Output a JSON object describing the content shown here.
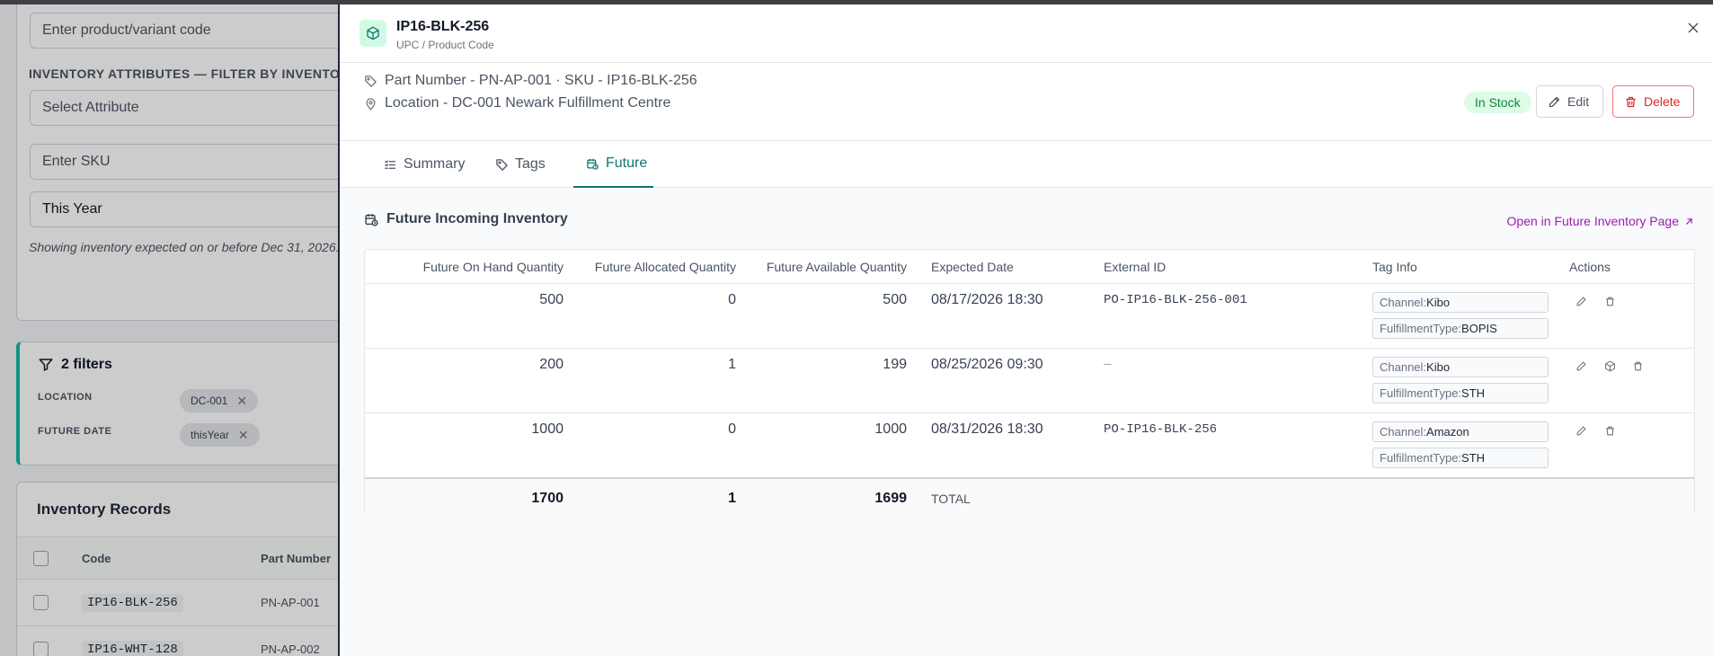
{
  "background": {
    "product_placeholder": "Enter product/variant code",
    "attributes_label": "INVENTORY ATTRIBUTES — FILTER BY INVENTORY",
    "attribute_placeholder": "Select Attribute",
    "sku_placeholder": "Enter SKU",
    "date_value": "This Year",
    "date_hint": "Showing inventory expected on or before Dec 31, 2026.",
    "filters_title": "2 filters",
    "filters": [
      {
        "label": "LOCATION",
        "value": "DC-001"
      },
      {
        "label": "FUTURE DATE",
        "value": "thisYear"
      }
    ],
    "records_title": "Inventory Records",
    "columns": [
      "Code",
      "Part Number"
    ],
    "rows": [
      {
        "code": "IP16-BLK-256",
        "part": "PN-AP-001"
      },
      {
        "code": "IP16-WHT-128",
        "part": "PN-AP-002"
      }
    ]
  },
  "drawer": {
    "title": "IP16-BLK-256",
    "subtitle": "UPC / Product Code",
    "part_line": "Part Number - PN-AP-001 · SKU - IP16-BLK-256",
    "location_line": "Location - DC-001 Newark Fulfillment Centre",
    "status": "In Stock",
    "edit_label": "Edit",
    "delete_label": "Delete",
    "tabs": [
      "Summary",
      "Tags",
      "Future"
    ],
    "active_tab": "Future",
    "panel_title": "Future Incoming Inventory",
    "open_link": "Open in Future Inventory Page",
    "columns": [
      "Future On Hand Quantity",
      "Future Allocated Quantity",
      "Future Available Quantity",
      "Expected Date",
      "External ID",
      "Tag Info",
      "Actions"
    ],
    "rows": [
      {
        "on_hand": "500",
        "allocated": "0",
        "available": "500",
        "date": "08/17/2026 18:30",
        "external_id": "PO-IP16-BLK-256-001",
        "tag1_key": "Channel:",
        "tag1_val": "Kibo",
        "tag2_key": "FulfillmentType:",
        "tag2_val": "BOPIS"
      },
      {
        "on_hand": "200",
        "allocated": "1",
        "available": "199",
        "date": "08/25/2026 09:30",
        "external_id": "—",
        "tag1_key": "Channel:",
        "tag1_val": "Kibo",
        "tag2_key": "FulfillmentType:",
        "tag2_val": "STH"
      },
      {
        "on_hand": "1000",
        "allocated": "0",
        "available": "1000",
        "date": "08/31/2026 18:30",
        "external_id": "PO-IP16-BLK-256",
        "tag1_key": "Channel:",
        "tag1_val": "Amazon",
        "tag2_key": "FulfillmentType:",
        "tag2_val": "STH"
      }
    ],
    "totals": {
      "on_hand": "1700",
      "allocated": "1",
      "available": "1699",
      "label": "TOTAL"
    }
  },
  "colors": {
    "accent": "#0f766e",
    "link": "#a21caf",
    "danger": "#dc2626",
    "success": "#15803d"
  }
}
